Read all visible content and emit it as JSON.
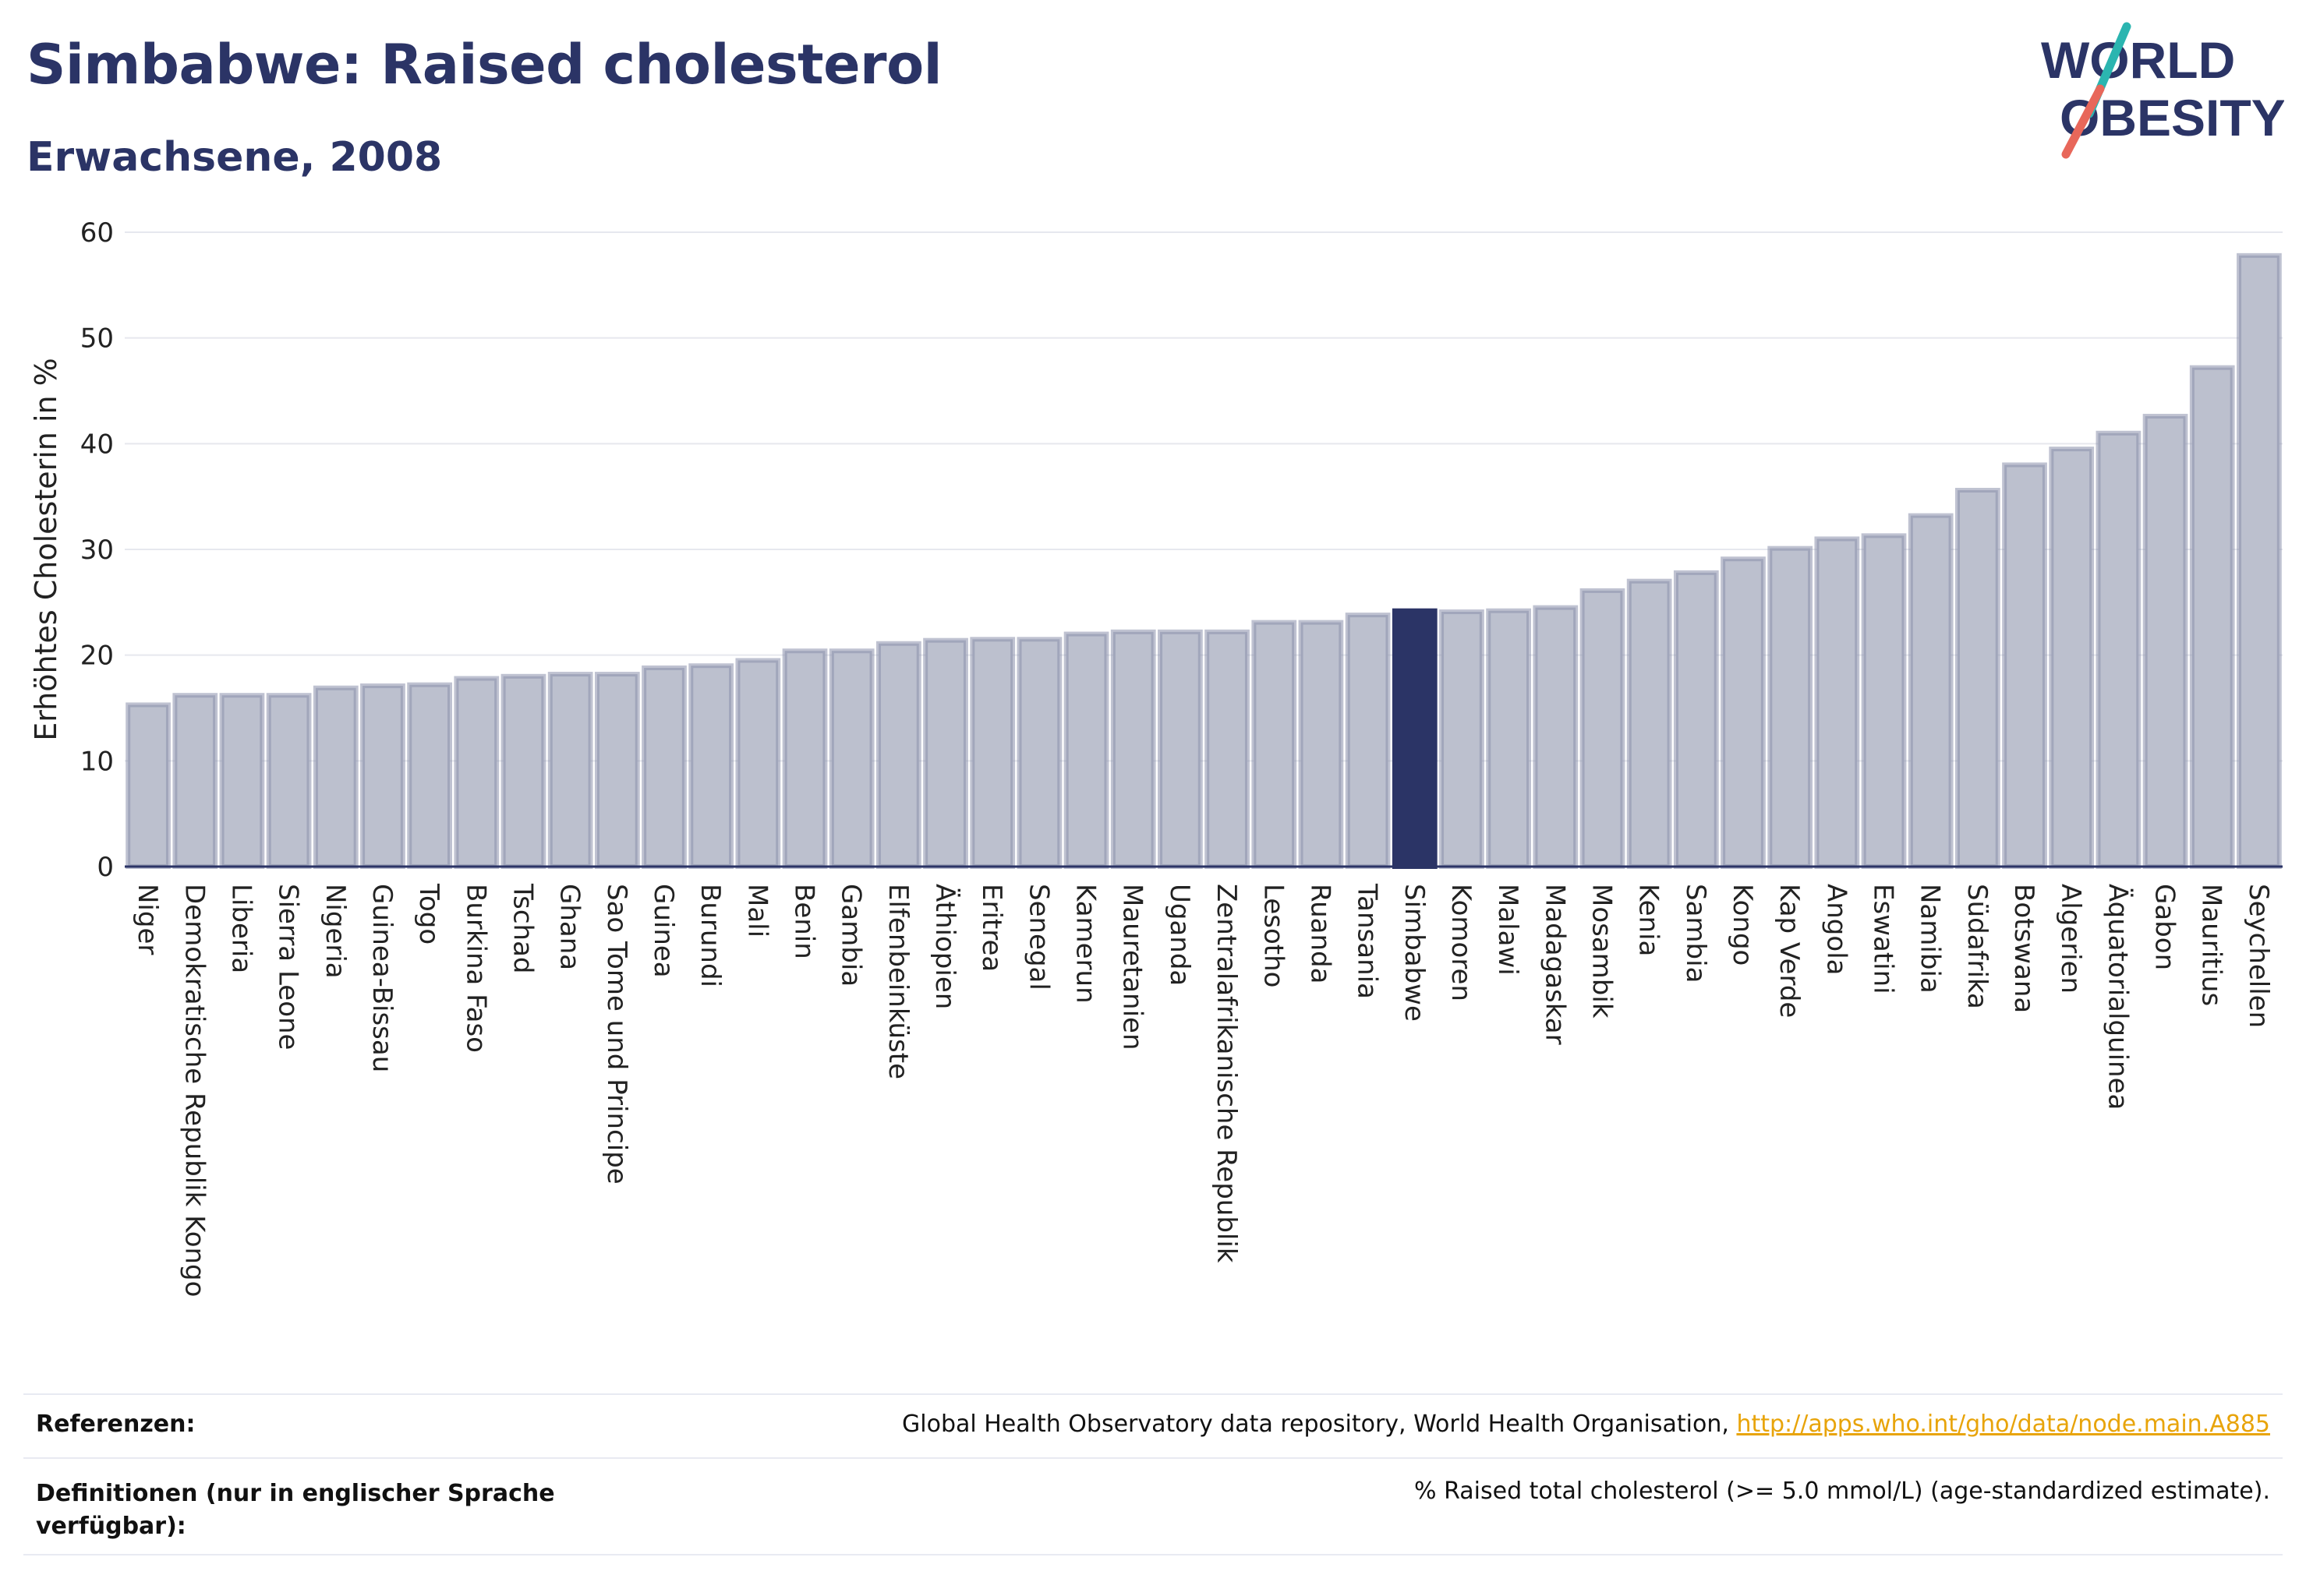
{
  "header": {
    "title": "Simbabwe: Raised cholesterol",
    "subtitle": "Erwachsene, 2008"
  },
  "logo": {
    "line1": "WORLD",
    "line2": "OBESITY",
    "accent_colors": [
      "#2bb5b0",
      "#e8675a"
    ]
  },
  "colors": {
    "bar": "#bcc0ce",
    "bar_edge": "#8a90ab",
    "highlight": "#2b3466",
    "title": "#2b3466",
    "link": "#e8a40a"
  },
  "chart_data": {
    "type": "bar",
    "ylabel": "Erhöhtes Cholesterin in %",
    "ylim": [
      0,
      60
    ],
    "yticks": [
      0,
      10,
      20,
      30,
      40,
      50,
      60
    ],
    "grid": true,
    "highlight": "Simbabwe",
    "categories": [
      "Niger",
      "Demokratische Republik Kongo",
      "Liberia",
      "Sierra Leone",
      "Nigeria",
      "Guinea-Bissau",
      "Togo",
      "Burkina Faso",
      "Tschad",
      "Ghana",
      "Sao Tome und Principe",
      "Guinea",
      "Burundi",
      "Mali",
      "Benin",
      "Gambia",
      "Elfenbeinküste",
      "Äthiopien",
      "Eritrea",
      "Senegal",
      "Kamerun",
      "Mauretanien",
      "Uganda",
      "Zentralafrikanische Republik",
      "Lesotho",
      "Ruanda",
      "Tansania",
      "Simbabwe",
      "Komoren",
      "Malawi",
      "Madagaskar",
      "Mosambik",
      "Kenia",
      "Sambia",
      "Kongo",
      "Kap Verde",
      "Angola",
      "Eswatini",
      "Namibia",
      "Südafrika",
      "Botswana",
      "Algerien",
      "Äquatorialguinea",
      "Gabon",
      "Mauritius",
      "Seychellen"
    ],
    "values": [
      15.3,
      16.2,
      16.2,
      16.2,
      16.9,
      17.1,
      17.2,
      17.8,
      18.0,
      18.2,
      18.2,
      18.8,
      19.0,
      19.5,
      20.4,
      20.4,
      21.1,
      21.4,
      21.5,
      21.5,
      22.0,
      22.2,
      22.2,
      22.2,
      23.1,
      23.1,
      23.8,
      24.2,
      24.1,
      24.2,
      24.5,
      26.1,
      27.0,
      27.8,
      29.1,
      30.1,
      31.0,
      31.3,
      33.2,
      35.6,
      38.0,
      39.5,
      41.0,
      42.6,
      47.2,
      57.8
    ]
  },
  "footer": {
    "references_label": "Referenzen:",
    "references_text": "Global Health Observatory data repository, World Health Organisation, ",
    "references_link": "http://apps.who.int/gho/data/node.main.A885",
    "definitions_label_1": "Definitionen (nur in englischer Sprache",
    "definitions_label_2": "verfügbar):",
    "definitions_text": "% Raised total cholesterol (>= 5.0 mmol/L) (age-standardized estimate)."
  }
}
